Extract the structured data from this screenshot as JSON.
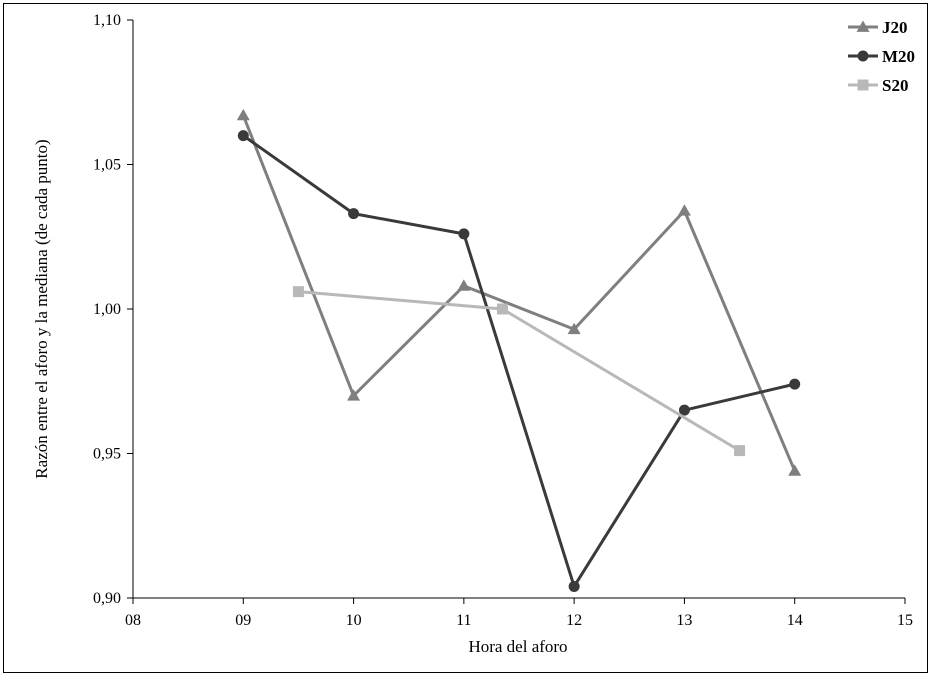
{
  "chart_data": {
    "type": "line",
    "xlabel": "Hora del aforo",
    "ylabel": "Razón entre el aforo y la mediana (de cada punto)",
    "xlim": [
      8,
      15
    ],
    "ylim": [
      0.9,
      1.1
    ],
    "x_ticks": [
      8,
      9,
      10,
      11,
      12,
      13,
      14,
      15
    ],
    "x_tick_labels": [
      "08",
      "09",
      "10",
      "11",
      "12",
      "13",
      "14",
      "15"
    ],
    "y_ticks": [
      0.9,
      0.95,
      1.0,
      1.05,
      1.1
    ],
    "y_tick_labels": [
      "0,90",
      "0,95",
      "1,00",
      "1,05",
      "1,10"
    ],
    "grid": false,
    "legend_position": "top-right",
    "series": [
      {
        "name": "J20",
        "marker": "triangle",
        "color": "#7f7f7f",
        "x": [
          9,
          10,
          11,
          12,
          13,
          14
        ],
        "y": [
          1.067,
          0.97,
          1.008,
          0.993,
          1.034,
          0.944
        ]
      },
      {
        "name": "M20",
        "marker": "circle",
        "color": "#3a3a3a",
        "x": [
          9,
          10,
          11,
          12,
          13,
          14
        ],
        "y": [
          1.06,
          1.033,
          1.026,
          0.904,
          0.965,
          0.974
        ]
      },
      {
        "name": "S20",
        "marker": "square",
        "color": "#b8b8b8",
        "x": [
          9.5,
          11.35,
          13.5
        ],
        "y": [
          1.006,
          1.0,
          0.951
        ]
      }
    ]
  }
}
